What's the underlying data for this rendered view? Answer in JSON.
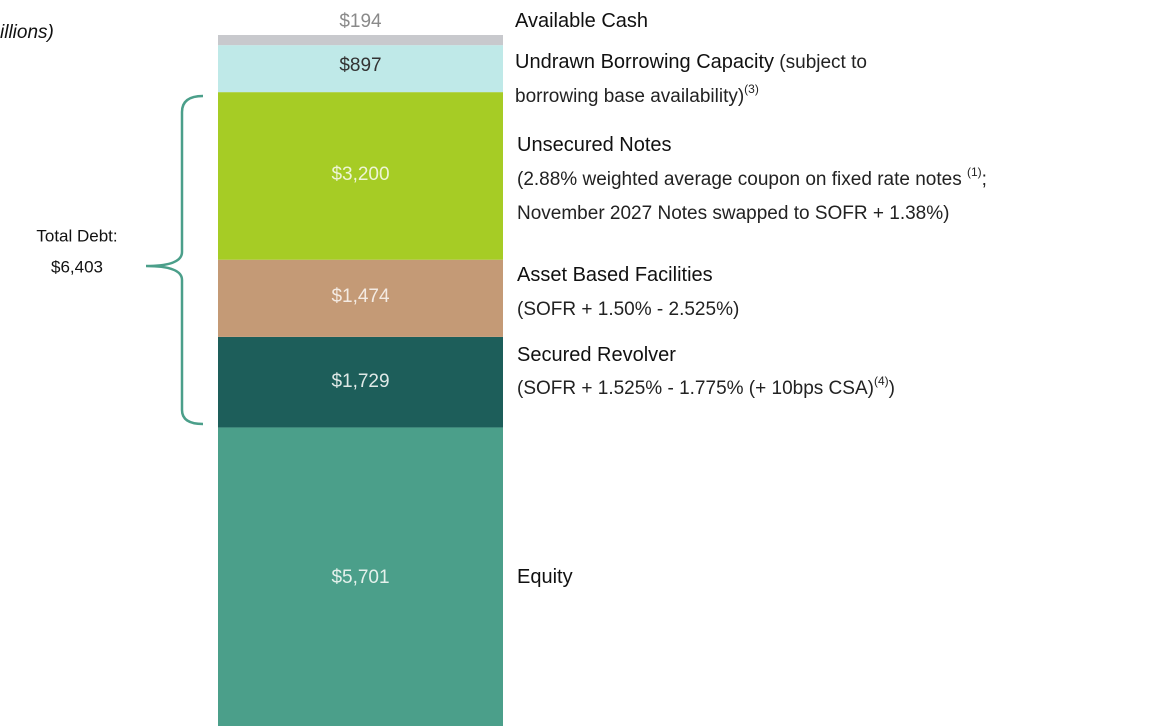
{
  "chart_data": {
    "type": "stacked-bar",
    "subtitle": "illions)",
    "series": [
      {
        "name": "Equity",
        "color": "#4b9f8a",
        "values": [
          5701
        ],
        "value_labels": [
          "$5,701"
        ],
        "label_color": "#e4f1ec",
        "notes": []
      },
      {
        "name": "Secured Revolver",
        "color": "#1d5e5a",
        "values": [
          1729
        ],
        "value_labels": [
          "$1,729"
        ],
        "label_color": "#dfe9e7",
        "notes": [
          [
            {
              "text": "(SOFR + 1.525% - 1.775% (+ 10bps CSA)"
            },
            {
              "sup": "(4)"
            },
            {
              "text": ")"
            }
          ]
        ]
      },
      {
        "name": "Asset Based Facilities",
        "color": "#c49a76",
        "values": [
          1474
        ],
        "value_labels": [
          "$1,474"
        ],
        "label_color": "#f4ebe3",
        "notes": [
          [
            {
              "text": "(SOFR + 1.50% - 2.525%)"
            }
          ]
        ]
      },
      {
        "name": "Unsecured Notes",
        "color": "#a6cc25",
        "values": [
          3200
        ],
        "value_labels": [
          "$3,200"
        ],
        "label_color": "#eef5d6",
        "notes": [
          [
            {
              "text": "(2.88% weighted average coupon on fixed rate notes "
            },
            {
              "sup": "(1)"
            },
            {
              "text": ";"
            }
          ],
          [
            {
              "text": "November 2027 Notes swapped to SOFR + 1.38%)"
            }
          ]
        ]
      },
      {
        "name": "Undrawn Borrowing Capacity",
        "name_suffix": " (subject to",
        "color": "#bfe9e8",
        "values": [
          897
        ],
        "value_labels": [
          "$897"
        ],
        "label_color": "#333333",
        "notes": [
          [
            {
              "text": "borrowing base availability)"
            },
            {
              "sup": "(3)"
            }
          ]
        ]
      },
      {
        "name": "Available Cash",
        "color": "#c8c9cd",
        "values": [
          194
        ],
        "value_labels": [
          "$194"
        ],
        "label_color": "#8a8a8a",
        "notes": []
      }
    ],
    "annotation": {
      "text": "Total Debt:",
      "value": 6403,
      "value_label": "$6,403"
    }
  }
}
